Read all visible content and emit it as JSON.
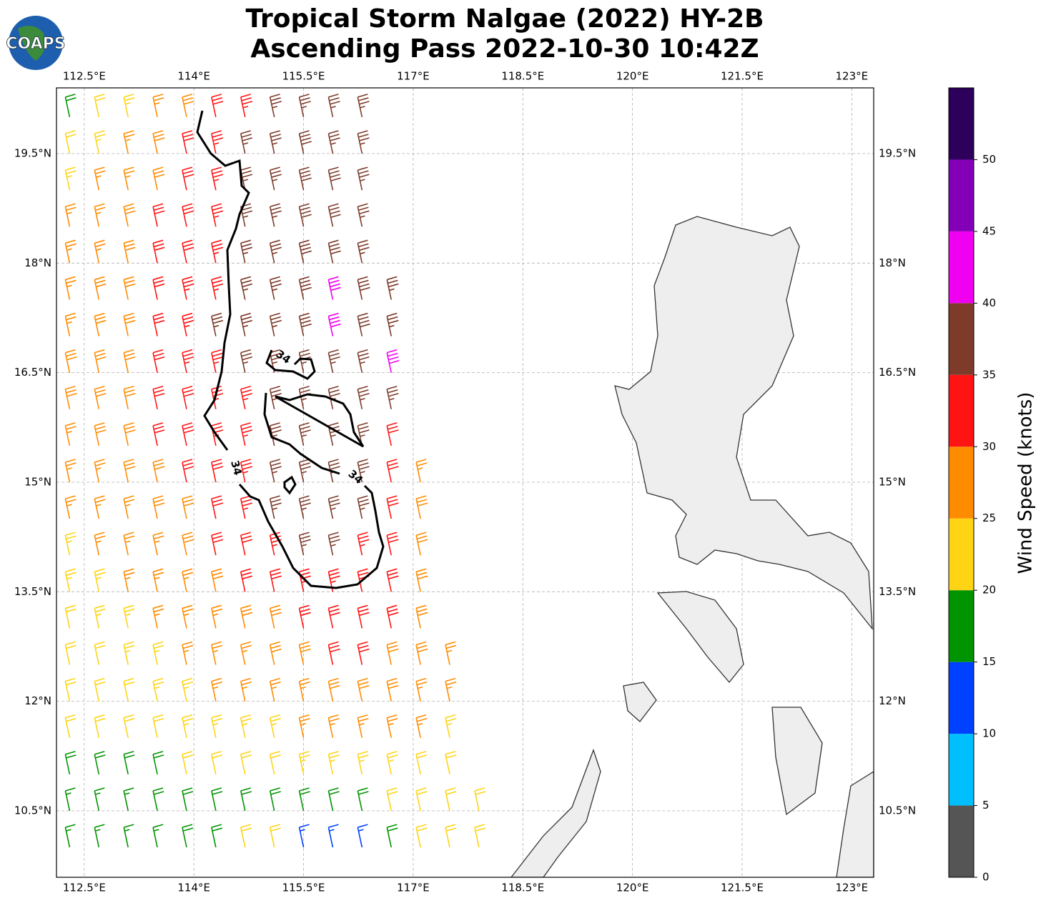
{
  "chart_data": {
    "type": "wind_barbs",
    "title": "Tropical Storm Nalgae (2022) HY-2B",
    "subtitle": "Ascending Pass 2022-10-30 10:42Z",
    "logo": "COAPS",
    "xlim": [
      112.12,
      123.3
    ],
    "ylim": [
      9.59,
      20.4
    ],
    "xticks": [
      {
        "value": 112.5,
        "label": "112.5°E"
      },
      {
        "value": 114,
        "label": "114°E"
      },
      {
        "value": 115.5,
        "label": "115.5°E"
      },
      {
        "value": 117,
        "label": "117°E"
      },
      {
        "value": 118.5,
        "label": "118.5°E"
      },
      {
        "value": 120,
        "label": "120°E"
      },
      {
        "value": 121.5,
        "label": "121.5°E"
      },
      {
        "value": 123,
        "label": "123°E"
      }
    ],
    "yticks": [
      {
        "value": 10.5,
        "label": "10.5°N"
      },
      {
        "value": 12,
        "label": "12°N"
      },
      {
        "value": 13.5,
        "label": "13.5°N"
      },
      {
        "value": 15,
        "label": "15°N"
      },
      {
        "value": 16.5,
        "label": "16.5°N"
      },
      {
        "value": 18,
        "label": "18°N"
      },
      {
        "value": 19.5,
        "label": "19.5°N"
      }
    ],
    "grid": true,
    "contour_labels": [
      34,
      34,
      34
    ],
    "colorbar": {
      "label": "Wind Speed (knots)",
      "bounds": [
        0,
        5,
        10,
        15,
        20,
        25,
        30,
        35,
        40,
        45,
        50,
        55
      ],
      "colors": [
        "#555555",
        "#00bfff",
        "#0040ff",
        "#009400",
        "#ffd414",
        "#ff8c00",
        "#ff1414",
        "#7e3b2a",
        "#f000f0",
        "#8400b8",
        "#2d005c"
      ],
      "ticks": [
        0,
        5,
        10,
        15,
        20,
        25,
        30,
        35,
        40,
        45,
        50
      ]
    },
    "lons": [
      112.3,
      112.7,
      113.1,
      113.5,
      113.9,
      114.3,
      114.7,
      115.1,
      115.5,
      115.9,
      116.3,
      116.7,
      117.1,
      117.5,
      117.9
    ],
    "lats": [
      20.0,
      19.5,
      19.0,
      18.5,
      18.0,
      17.5,
      17.0,
      16.5,
      16.0,
      15.5,
      15.0,
      14.5,
      14.0,
      13.5,
      13.0,
      12.5,
      12.0,
      11.5,
      11.0,
      10.5,
      10.0
    ],
    "speeds": [
      [
        18,
        22,
        24,
        27,
        29,
        32,
        34,
        36,
        37,
        37,
        36,
        null,
        null,
        null,
        null
      ],
      [
        22,
        24,
        26,
        28,
        31,
        33,
        35,
        37,
        38,
        37,
        36,
        null,
        null,
        null,
        null
      ],
      [
        24,
        26,
        27,
        29,
        32,
        34,
        36,
        37,
        38,
        38,
        37,
        null,
        null,
        null,
        null
      ],
      [
        25,
        27,
        28,
        30,
        32,
        34,
        36,
        37,
        38,
        38,
        37,
        null,
        null,
        null,
        null
      ],
      [
        26,
        27,
        28,
        30,
        32,
        34,
        36,
        37,
        38,
        38,
        37,
        null,
        null,
        null,
        null
      ],
      [
        27,
        28,
        29,
        31,
        33,
        34,
        36,
        37,
        38,
        41,
        38,
        36,
        null,
        null,
        null
      ],
      [
        27,
        28,
        29,
        31,
        33,
        35,
        36,
        37,
        38,
        41,
        38,
        37,
        null,
        null,
        null
      ],
      [
        28,
        28,
        29,
        31,
        33,
        34,
        36,
        36,
        37,
        37,
        37,
        41,
        null,
        null,
        null
      ],
      [
        28,
        28,
        29,
        31,
        32,
        34,
        34,
        36,
        37,
        37,
        37,
        36,
        null,
        null,
        null
      ],
      [
        27,
        28,
        29,
        30,
        32,
        33,
        34,
        36,
        37,
        37,
        36,
        32,
        null,
        null,
        null
      ],
      [
        26,
        27,
        28,
        29,
        30,
        32,
        34,
        36,
        37,
        37,
        36,
        30,
        26,
        null,
        null
      ],
      [
        25,
        26,
        27,
        28,
        29,
        31,
        33,
        35,
        37,
        37,
        36,
        32,
        28,
        null,
        null
      ],
      [
        24,
        25,
        26,
        27,
        28,
        30,
        32,
        34,
        36,
        36,
        34,
        31,
        28,
        null,
        null
      ],
      [
        23,
        24,
        25,
        26,
        27,
        29,
        31,
        32,
        33,
        33,
        32,
        31,
        29,
        null,
        null
      ],
      [
        22,
        23,
        24,
        25,
        26,
        27,
        28,
        29,
        30,
        31,
        31,
        30,
        29,
        null,
        null
      ],
      [
        22,
        22,
        23,
        24,
        25,
        26,
        27,
        28,
        29,
        30,
        30,
        29,
        28,
        26,
        null
      ],
      [
        21,
        22,
        22,
        23,
        24,
        25,
        26,
        26,
        27,
        28,
        28,
        28,
        27,
        25,
        null
      ],
      [
        20,
        21,
        22,
        22,
        23,
        23,
        23,
        24,
        25,
        25,
        26,
        26,
        25,
        24,
        null
      ],
      [
        18,
        18,
        19,
        19,
        20,
        21,
        21,
        22,
        23,
        23,
        23,
        23,
        22,
        22,
        null
      ],
      [
        17,
        17,
        17,
        18,
        18,
        18,
        19,
        19,
        18,
        18,
        19,
        21,
        22,
        22,
        22
      ],
      [
        17,
        17,
        17,
        17,
        18,
        19,
        20,
        20,
        14,
        13,
        13,
        18,
        21,
        22,
        22
      ]
    ]
  }
}
